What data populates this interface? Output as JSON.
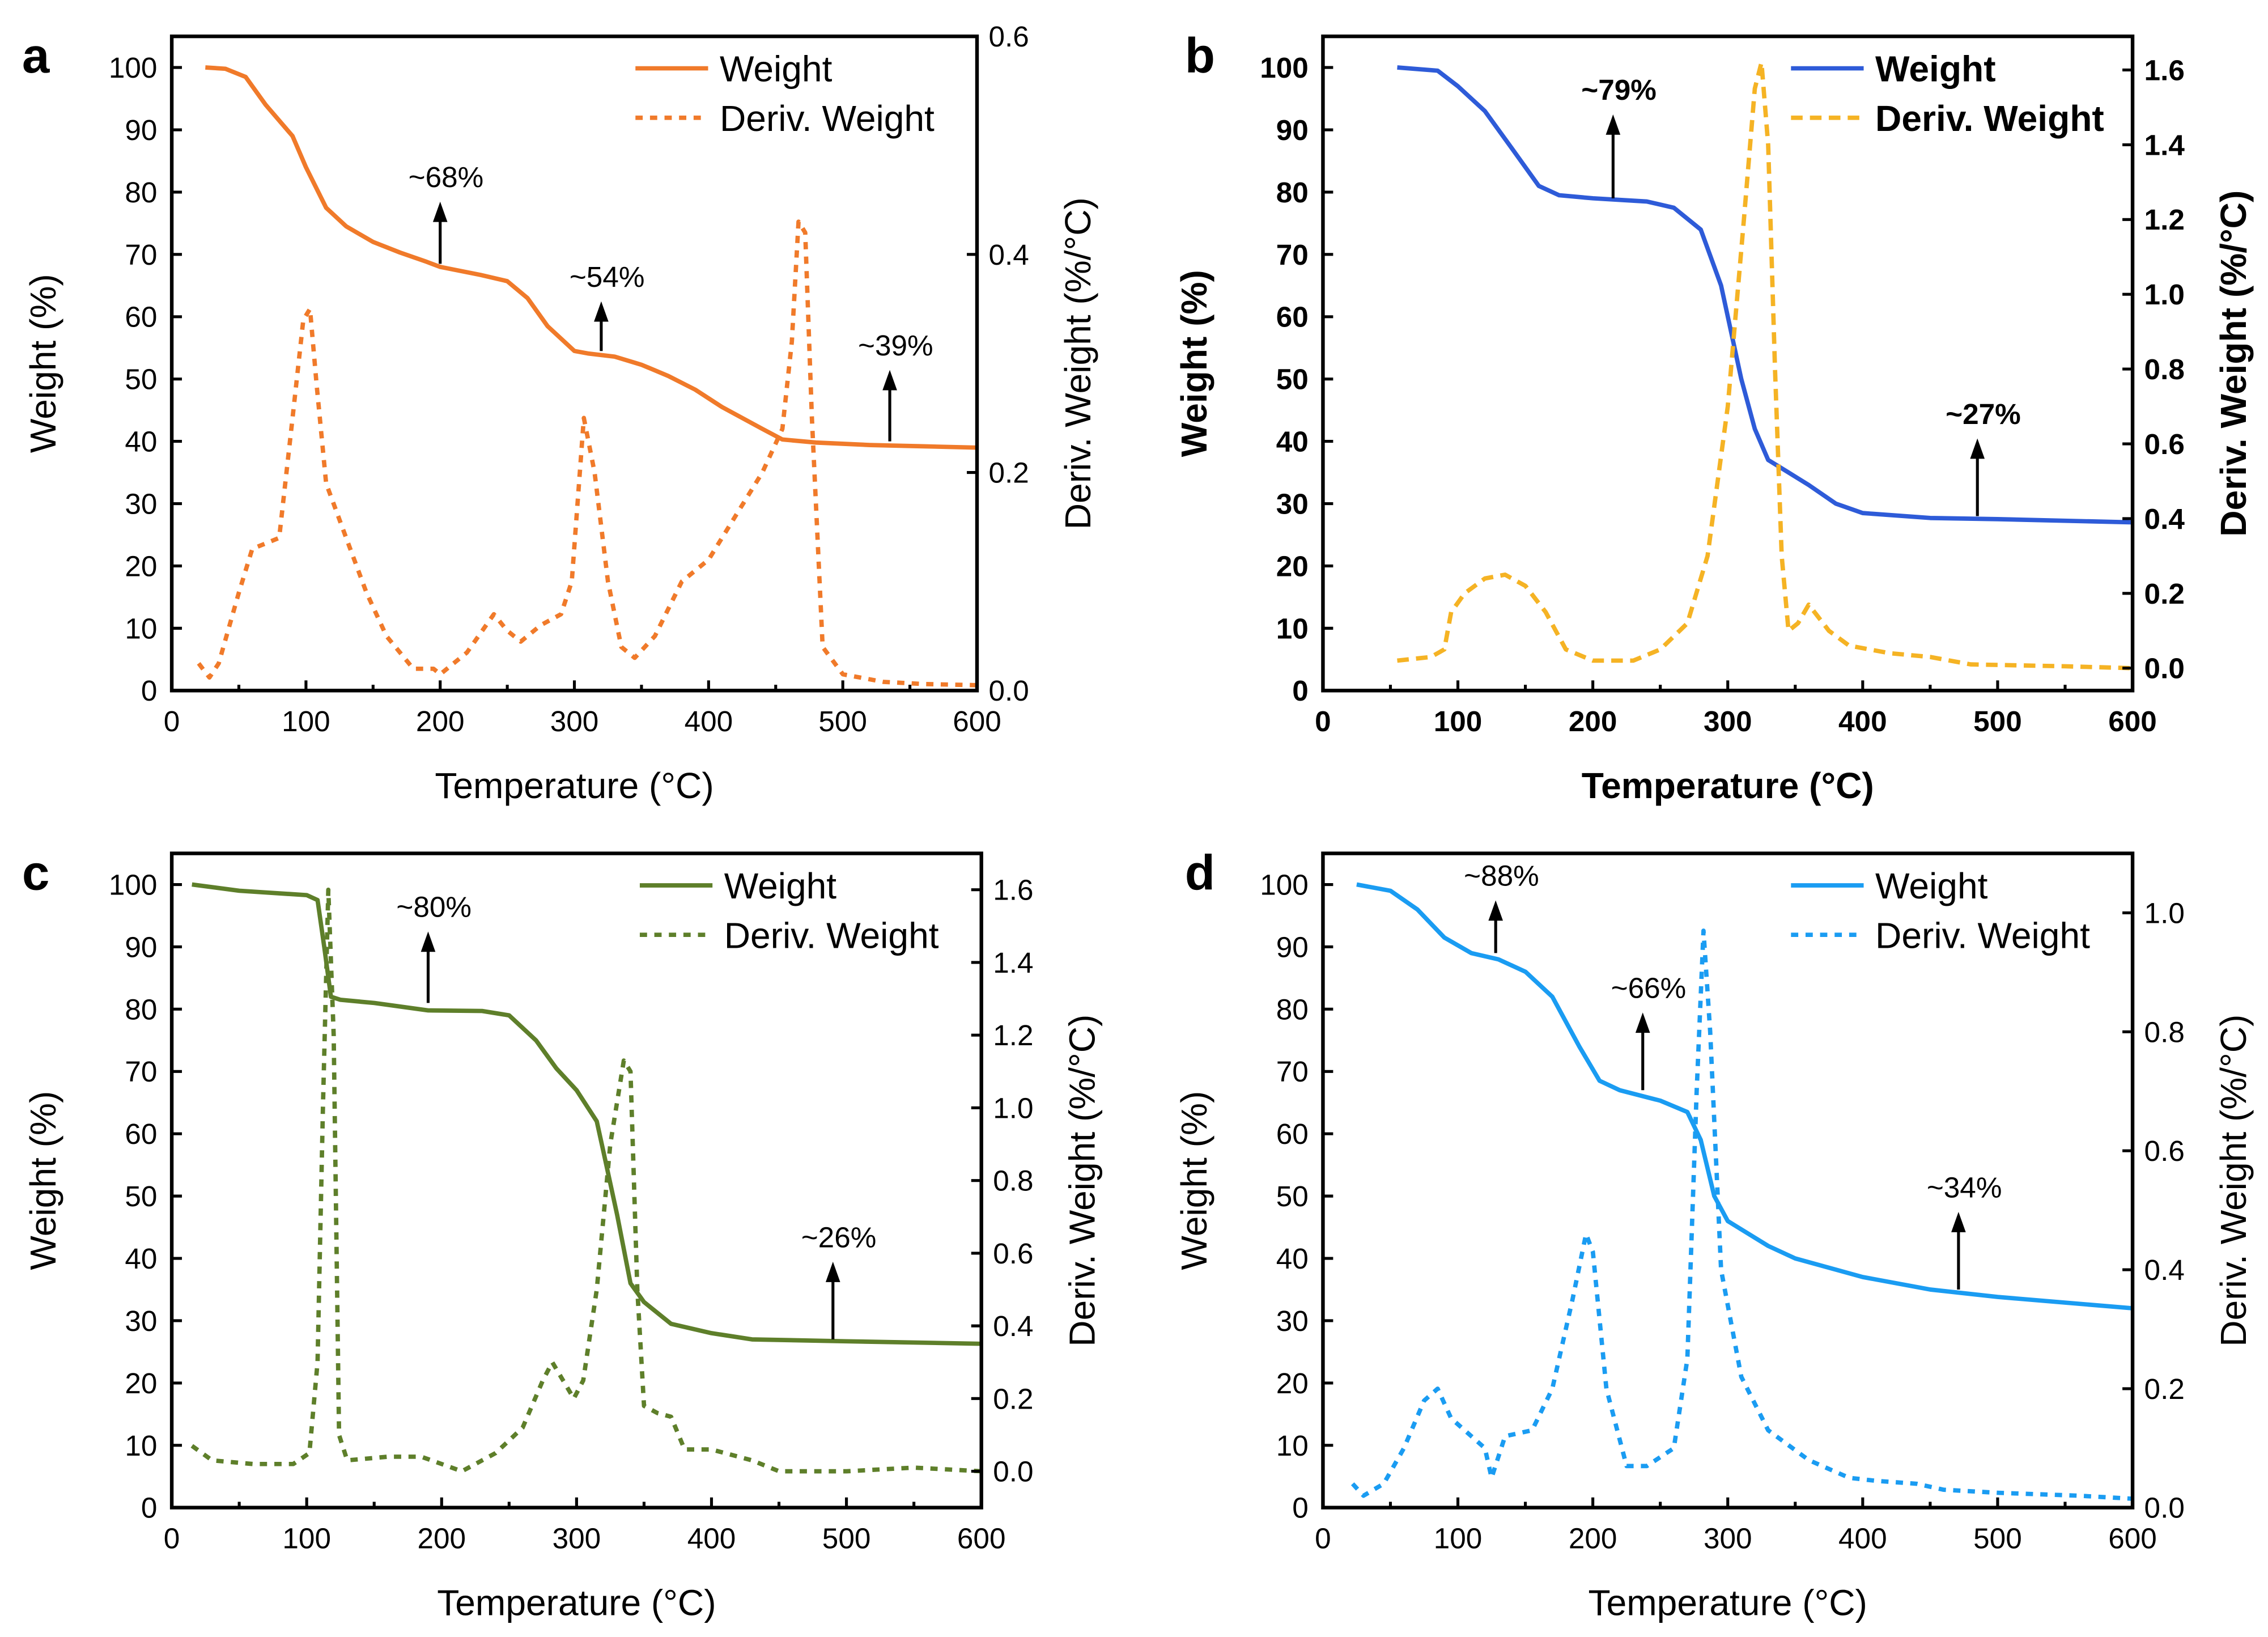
{
  "chart_data": [
    {
      "panel": "a",
      "type": "line",
      "xlabel": "Temperature (°C)",
      "ylabel": "Weight (%)",
      "y2label": "Deriv. Weight (%/°C)",
      "xlim": [
        0,
        600
      ],
      "ylim": [
        0,
        105
      ],
      "y2lim": [
        0,
        0.6
      ],
      "xticks": [
        0,
        100,
        200,
        300,
        400,
        500,
        600
      ],
      "yticks": [
        0,
        10,
        20,
        30,
        40,
        50,
        60,
        70,
        80,
        90,
        100
      ],
      "y2ticks": [
        0.0,
        0.2,
        0.4,
        0.6
      ],
      "y2decimals": 1,
      "legend": {
        "position": "top-right",
        "entries": [
          "Weight",
          "Deriv. Weight"
        ]
      },
      "colors": {
        "weight": "#f07a2a",
        "deriv": "#f07a2a"
      },
      "series": [
        {
          "name": "Weight",
          "axis": "left",
          "style": "solid",
          "x": [
            25,
            40,
            55,
            70,
            90,
            100,
            115,
            130,
            150,
            170,
            190,
            200,
            230,
            250,
            265,
            280,
            300,
            310,
            330,
            350,
            370,
            390,
            410,
            440,
            455,
            480,
            520,
            560,
            600
          ],
          "y": [
            100,
            99.8,
            98.5,
            94,
            89,
            84,
            77.5,
            74.5,
            72,
            70.3,
            68.8,
            68,
            66.7,
            65.7,
            63,
            58.5,
            54.5,
            54.1,
            53.6,
            52.3,
            50.5,
            48.3,
            45.5,
            42,
            40.3,
            39.8,
            39.4,
            39.2,
            39.0
          ]
        },
        {
          "name": "Deriv. Weight",
          "axis": "right",
          "style": "dotted",
          "x": [
            20,
            28,
            35,
            50,
            60,
            70,
            80,
            90,
            98,
            103,
            108,
            115,
            130,
            145,
            160,
            180,
            195,
            200,
            220,
            240,
            250,
            260,
            275,
            290,
            298,
            307,
            315,
            325,
            335,
            345,
            360,
            380,
            400,
            420,
            440,
            455,
            462,
            467,
            472,
            477,
            485,
            500,
            530,
            560,
            600
          ],
          "y": [
            0.025,
            0.012,
            0.025,
            0.09,
            0.13,
            0.135,
            0.14,
            0.25,
            0.34,
            0.35,
            0.28,
            0.19,
            0.14,
            0.09,
            0.05,
            0.02,
            0.02,
            0.015,
            0.035,
            0.07,
            0.055,
            0.045,
            0.06,
            0.07,
            0.1,
            0.25,
            0.2,
            0.1,
            0.04,
            0.03,
            0.05,
            0.1,
            0.12,
            0.16,
            0.2,
            0.24,
            0.32,
            0.43,
            0.42,
            0.25,
            0.04,
            0.015,
            0.008,
            0.006,
            0.005
          ]
        }
      ],
      "annotations": [
        {
          "text": "~68%",
          "x": 200,
          "y_from": 68.5,
          "y_to": 78
        },
        {
          "text": "~54%",
          "x": 320,
          "y_from": 54.5,
          "y_to": 62
        },
        {
          "text": "~39%",
          "x": 535,
          "y_from": 40,
          "y_to": 51
        }
      ]
    },
    {
      "panel": "b",
      "type": "line",
      "xlabel": "Temperature (°C)",
      "ylabel": "Weight (%)",
      "y2label": "Deriv. Weight (%/°C)",
      "xlim": [
        0,
        600
      ],
      "ylim": [
        0,
        105
      ],
      "y2lim": [
        -0.06,
        1.69
      ],
      "xticks": [
        0,
        100,
        200,
        300,
        400,
        500,
        600
      ],
      "yticks": [
        0,
        10,
        20,
        30,
        40,
        50,
        60,
        70,
        80,
        90,
        100
      ],
      "y2ticks": [
        0.0,
        0.2,
        0.4,
        0.6,
        0.8,
        1.0,
        1.2,
        1.4,
        1.6
      ],
      "y2decimals": 1,
      "legend": {
        "position": "top-right",
        "entries": [
          "Weight",
          "Deriv. Weight"
        ]
      },
      "colors": {
        "weight": "#2e5bd8",
        "deriv": "#f5b324"
      },
      "series": [
        {
          "name": "Weight",
          "axis": "left",
          "style": "solid",
          "x": [
            55,
            85,
            100,
            120,
            140,
            160,
            175,
            200,
            240,
            260,
            280,
            295,
            310,
            320,
            330,
            345,
            360,
            380,
            400,
            450,
            500,
            600
          ],
          "y": [
            100,
            99.5,
            97,
            93,
            87,
            81,
            79.5,
            79,
            78.5,
            77.5,
            74,
            65,
            50,
            42,
            37,
            35,
            33,
            30,
            28.5,
            27.7,
            27.5,
            27
          ]
        },
        {
          "name": "Deriv. Weight",
          "axis": "right",
          "style": "dashed",
          "x": [
            55,
            80,
            90,
            95,
            105,
            120,
            135,
            150,
            165,
            180,
            200,
            230,
            250,
            270,
            285,
            300,
            312,
            320,
            325,
            330,
            335,
            340,
            345,
            352,
            360,
            375,
            390,
            420,
            450,
            480,
            550,
            600
          ],
          "y": [
            0.02,
            0.03,
            0.05,
            0.15,
            0.2,
            0.24,
            0.25,
            0.22,
            0.15,
            0.05,
            0.02,
            0.02,
            0.05,
            0.12,
            0.3,
            0.7,
            1.2,
            1.55,
            1.62,
            1.4,
            0.8,
            0.3,
            0.1,
            0.12,
            0.17,
            0.1,
            0.06,
            0.04,
            0.03,
            0.01,
            0.005,
            0.0
          ]
        }
      ],
      "annotations": [
        {
          "text": "~79%",
          "x": 215,
          "y_from": 79,
          "y_to": 92
        },
        {
          "text": "~27%",
          "x": 485,
          "y_from": 28,
          "y_to": 40
        }
      ]
    },
    {
      "panel": "c",
      "type": "line",
      "xlabel": "Temperature (°C)",
      "ylabel": "Weight (%)",
      "y2label": "Deriv. Weight (%/°C)",
      "xlim": [
        0,
        600
      ],
      "ylim": [
        0,
        105
      ],
      "y2lim": [
        -0.1,
        1.7
      ],
      "xticks": [
        0,
        100,
        200,
        300,
        400,
        500,
        600
      ],
      "yticks": [
        0,
        10,
        20,
        30,
        40,
        50,
        60,
        70,
        80,
        90,
        100
      ],
      "y2ticks": [
        0.0,
        0.2,
        0.4,
        0.6,
        0.8,
        1.0,
        1.2,
        1.4,
        1.6
      ],
      "y2decimals": 1,
      "legend": {
        "position": "top-right",
        "entries": [
          "Weight",
          "Deriv. Weight"
        ]
      },
      "colors": {
        "weight": "#5e7f2a",
        "deriv": "#5e7f2a"
      },
      "series": [
        {
          "name": "Weight",
          "axis": "left",
          "style": "solid",
          "x": [
            15,
            50,
            100,
            108,
            113,
            118,
            125,
            150,
            190,
            230,
            250,
            270,
            285,
            300,
            315,
            320,
            330,
            340,
            350,
            370,
            400,
            430,
            500,
            600
          ],
          "y": [
            100,
            99,
            98.3,
            97.5,
            90,
            82,
            81.5,
            81,
            79.8,
            79.7,
            79,
            75,
            70.5,
            67,
            62,
            57,
            47,
            36,
            33,
            29.5,
            28,
            27,
            26.7,
            26.3
          ]
        },
        {
          "name": "Deriv. Weight",
          "axis": "right",
          "style": "dotted",
          "x": [
            15,
            30,
            60,
            90,
            102,
            108,
            112,
            116,
            120,
            124,
            130,
            160,
            185,
            215,
            240,
            260,
            275,
            282,
            290,
            298,
            305,
            315,
            325,
            335,
            340,
            345,
            350,
            360,
            370,
            380,
            400,
            430,
            450,
            500,
            550,
            600
          ],
          "y": [
            0.07,
            0.03,
            0.02,
            0.02,
            0.05,
            0.3,
            1.0,
            1.6,
            1.2,
            0.1,
            0.03,
            0.04,
            0.04,
            0.0,
            0.05,
            0.12,
            0.25,
            0.3,
            0.25,
            0.2,
            0.25,
            0.5,
            0.9,
            1.13,
            1.1,
            0.5,
            0.18,
            0.16,
            0.15,
            0.06,
            0.06,
            0.03,
            0.0,
            0.0,
            0.01,
            0.0
          ]
        }
      ],
      "annotations": [
        {
          "text": "~80%",
          "x": 190,
          "y_from": 81,
          "y_to": 92
        },
        {
          "text": "~26%",
          "x": 490,
          "y_from": 27,
          "y_to": 39
        }
      ]
    },
    {
      "panel": "d",
      "type": "line",
      "xlabel": "Temperature (°C)",
      "ylabel": "Weight (%)",
      "y2label": "Deriv. Weight (%/°C)",
      "xlim": [
        0,
        600
      ],
      "ylim": [
        0,
        105
      ],
      "y2lim": [
        0,
        1.1
      ],
      "xticks": [
        0,
        100,
        200,
        300,
        400,
        500,
        600
      ],
      "yticks": [
        0,
        10,
        20,
        30,
        40,
        50,
        60,
        70,
        80,
        90,
        100
      ],
      "y2ticks": [
        0.0,
        0.2,
        0.4,
        0.6,
        0.8,
        1.0
      ],
      "y2decimals": 1,
      "legend": {
        "position": "top-right",
        "entries": [
          "Weight",
          "Deriv. Weight"
        ]
      },
      "colors": {
        "weight": "#1a9cf2",
        "deriv": "#1a9cf2"
      },
      "series": [
        {
          "name": "Weight",
          "axis": "left",
          "style": "solid",
          "x": [
            25,
            50,
            70,
            90,
            110,
            130,
            150,
            170,
            190,
            205,
            220,
            250,
            270,
            280,
            290,
            300,
            330,
            350,
            400,
            450,
            500,
            600
          ],
          "y": [
            100,
            99,
            96,
            91.5,
            89,
            88,
            86,
            82,
            74,
            68.5,
            67,
            65.3,
            63.5,
            59,
            50,
            46,
            42,
            40,
            37,
            35,
            33.8,
            32
          ]
        },
        {
          "name": "Deriv. Weight",
          "axis": "right",
          "style": "dotted",
          "x": [
            22,
            30,
            45,
            60,
            75,
            85,
            95,
            110,
            120,
            125,
            135,
            155,
            170,
            185,
            195,
            200,
            210,
            225,
            240,
            260,
            270,
            277,
            282,
            287,
            295,
            310,
            330,
            360,
            390,
            410,
            440,
            460,
            500,
            560,
            600
          ],
          "y": [
            0.04,
            0.02,
            0.04,
            0.1,
            0.18,
            0.2,
            0.15,
            0.12,
            0.1,
            0.05,
            0.12,
            0.13,
            0.2,
            0.35,
            0.46,
            0.43,
            0.2,
            0.07,
            0.07,
            0.1,
            0.25,
            0.7,
            0.97,
            0.8,
            0.4,
            0.22,
            0.13,
            0.08,
            0.05,
            0.045,
            0.04,
            0.03,
            0.025,
            0.02,
            0.015
          ]
        }
      ],
      "annotations": [
        {
          "text": "~88%",
          "x": 128,
          "y_from": 89,
          "y_to": 97
        },
        {
          "text": "~66%",
          "x": 237,
          "y_from": 67,
          "y_to": 79
        },
        {
          "text": "~34%",
          "x": 471,
          "y_from": 35,
          "y_to": 47
        }
      ]
    }
  ]
}
